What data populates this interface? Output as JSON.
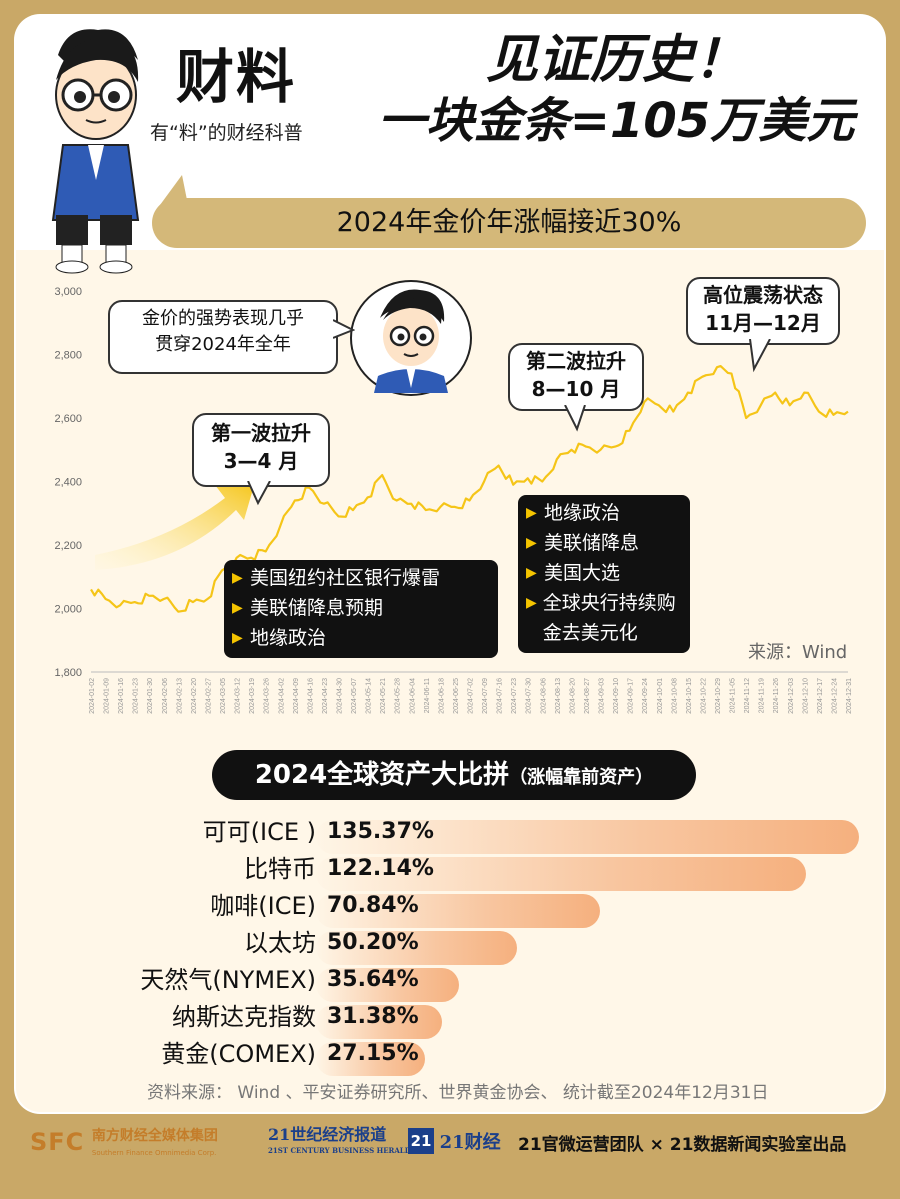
{
  "brand": {
    "title": "财料",
    "subtitle": "有“料”的财经科普"
  },
  "headline": {
    "line1": "见证历史！",
    "line2": "一块金条=105万美元"
  },
  "subheadline": "2024年金价年涨幅接近30%",
  "callouts": {
    "intro": {
      "line1": "金价的强势表现几乎",
      "line2": "贯穿2024年全年"
    },
    "wave1": {
      "line1": "第一波拉升",
      "line2": "3—4 月"
    },
    "wave2": {
      "line1": "第二波拉升",
      "line2": "8—10 月"
    },
    "high": {
      "line1": "高位震荡状态",
      "line2": "11月—12月"
    }
  },
  "drivers": {
    "first": [
      "美国纽约社区银行爆雷",
      "美联储降息预期",
      "地缘政治"
    ],
    "second": [
      "地缘政治",
      "美联储降息",
      "美国大选",
      "全球央行持续购金去美元化"
    ]
  },
  "source": "来源：Wind",
  "chart_data": [
    {
      "type": "line",
      "title": "",
      "y_ticks": [
        "1,800",
        "2,000",
        "2,200",
        "2,400",
        "2,600",
        "2,800",
        "3,000"
      ],
      "ylim": [
        1800,
        3000
      ],
      "x_tick_labels": [
        "2024-01-02",
        "2024-01-09",
        "2024-01-16",
        "2024-01-23",
        "2024-01-30",
        "2024-02-06",
        "2024-02-13",
        "2024-02-20",
        "2024-02-27",
        "2024-03-05",
        "2024-03-12",
        "2024-03-19",
        "2024-03-26",
        "2024-04-02",
        "2024-04-09",
        "2024-04-16",
        "2024-04-23",
        "2024-04-30",
        "2024-05-07",
        "2024-05-14",
        "2024-05-21",
        "2024-05-28",
        "2024-06-04",
        "2024-06-11",
        "2024-06-18",
        "2024-06-25",
        "2024-07-02",
        "2024-07-09",
        "2024-07-16",
        "2024-07-23",
        "2024-07-30",
        "2024-08-06",
        "2024-08-13",
        "2024-08-20",
        "2024-08-27",
        "2024-09-03",
        "2024-09-10",
        "2024-09-17",
        "2024-09-24",
        "2024-10-01",
        "2024-10-08",
        "2024-10-15",
        "2024-10-22",
        "2024-10-29",
        "2024-11-05",
        "2024-11-12",
        "2024-11-19",
        "2024-11-26",
        "2024-12-03",
        "2024-12-10",
        "2024-12-17",
        "2024-12-24",
        "2024-12-31"
      ],
      "series": [
        {
          "color": "#f5c518",
          "x": [
            "2024-01-02",
            "2024-01-09",
            "2024-01-16",
            "2024-01-23",
            "2024-01-30",
            "2024-02-06",
            "2024-02-13",
            "2024-02-20",
            "2024-02-27",
            "2024-03-05",
            "2024-03-12",
            "2024-03-19",
            "2024-03-26",
            "2024-04-02",
            "2024-04-09",
            "2024-04-16",
            "2024-04-23",
            "2024-04-30",
            "2024-05-07",
            "2024-05-14",
            "2024-05-21",
            "2024-05-28",
            "2024-06-04",
            "2024-06-11",
            "2024-06-18",
            "2024-06-25",
            "2024-07-02",
            "2024-07-09",
            "2024-07-16",
            "2024-07-23",
            "2024-07-30",
            "2024-08-06",
            "2024-08-13",
            "2024-08-20",
            "2024-08-27",
            "2024-09-03",
            "2024-09-10",
            "2024-09-17",
            "2024-09-24",
            "2024-10-01",
            "2024-10-08",
            "2024-10-15",
            "2024-10-22",
            "2024-10-29",
            "2024-11-05",
            "2024-11-12",
            "2024-11-19",
            "2024-11-26",
            "2024-12-03",
            "2024-12-10",
            "2024-12-17",
            "2024-12-24",
            "2024-12-31"
          ],
          "values": [
            2060,
            2030,
            2010,
            2020,
            2040,
            2030,
            1990,
            2020,
            2030,
            2120,
            2160,
            2160,
            2180,
            2260,
            2340,
            2380,
            2330,
            2290,
            2310,
            2350,
            2420,
            2340,
            2330,
            2310,
            2320,
            2320,
            2340,
            2400,
            2450,
            2390,
            2410,
            2400,
            2470,
            2500,
            2510,
            2500,
            2510,
            2560,
            2650,
            2640,
            2620,
            2680,
            2730,
            2760,
            2740,
            2600,
            2640,
            2680,
            2640,
            2680,
            2620,
            2610,
            2620
          ]
        }
      ]
    },
    {
      "type": "bar",
      "title": "2024全球资产大比拼",
      "subtitle": "（涨幅靠前资产）",
      "categories": [
        "可可(ICE )",
        "比特币",
        "咖啡(ICE)",
        "以太坊",
        "天然气(NYMEX)",
        "纳斯达克指数",
        "黄金(COMEX)"
      ],
      "values": [
        135.37,
        122.14,
        70.84,
        50.2,
        35.64,
        31.38,
        27.15
      ],
      "value_labels": [
        "135.37%",
        "122.14%",
        "70.84%",
        "50.20%",
        "35.64%",
        "31.38%",
        "27.15%"
      ]
    }
  ],
  "footnote": "资料来源： Wind 、平安证券研究所、世界黄金协会、 统计截至2024年12月31日",
  "footer": {
    "sfc_mark": "SFC",
    "sfc_cn": "南方财经全媒体集团",
    "sfc_en": "Southern Finance Omnimedia Corp.",
    "herald_cn": "21世纪经济报道",
    "herald_en": "21ST CENTURY BUSINESS HERALD",
    "cj_mark": "21",
    "cj_cn": "21财经",
    "credit": "21官微运营团队 × 21数据新闻实验室出品"
  }
}
